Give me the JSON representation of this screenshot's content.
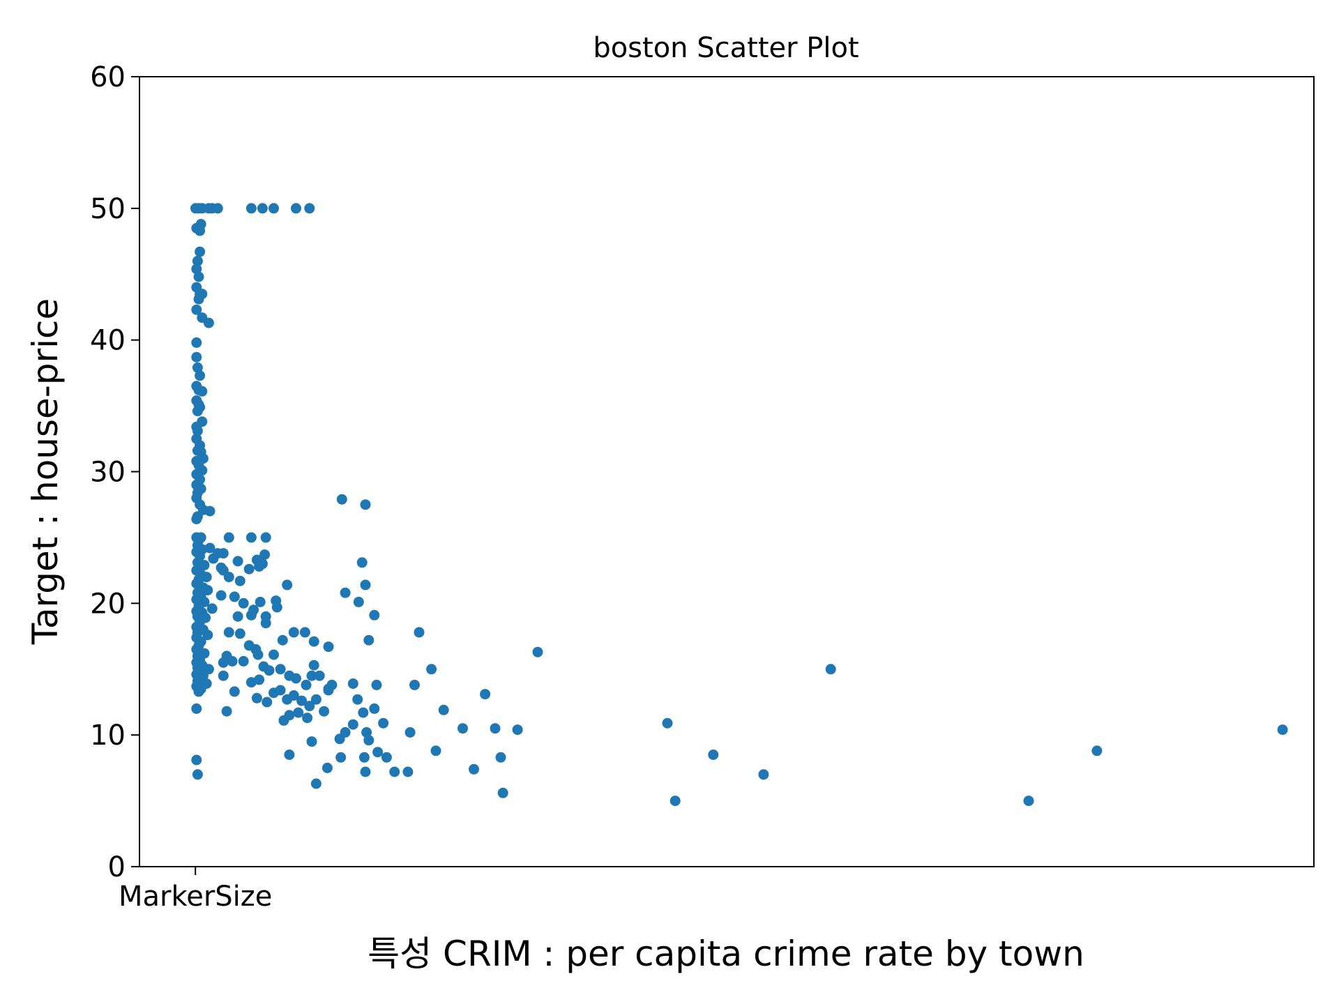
{
  "chart_data": {
    "type": "scatter",
    "title": "boston Scatter Plot",
    "xlabel": "특성 CRIM : per capita crime rate by town",
    "ylabel": "Target : house-price",
    "x_tick_labels": [
      {
        "x": 0,
        "label": "MarkerSize"
      }
    ],
    "y_ticks": [
      0,
      10,
      20,
      30,
      40,
      50,
      60
    ],
    "ylim": [
      0,
      60
    ],
    "xlim": [
      -5,
      100
    ],
    "grid": false,
    "legend": false,
    "marker_color": "#1f77b4",
    "series": [
      {
        "points": [
          [
            0.02,
            50.0
          ],
          [
            0.3,
            50.0
          ],
          [
            0.6,
            50.0
          ],
          [
            1.2,
            50.0
          ],
          [
            1.5,
            50.0
          ],
          [
            2.0,
            50.0
          ],
          [
            5.0,
            50.0
          ],
          [
            6.0,
            50.0
          ],
          [
            7.0,
            50.0
          ],
          [
            9.0,
            50.0
          ],
          [
            10.2,
            50.0
          ],
          [
            0.1,
            48.5
          ],
          [
            0.4,
            48.3
          ],
          [
            0.5,
            48.8
          ],
          [
            0.2,
            46.0
          ],
          [
            0.4,
            46.7
          ],
          [
            0.1,
            45.4
          ],
          [
            0.3,
            44.8
          ],
          [
            0.1,
            44.0
          ],
          [
            0.4,
            43.5
          ],
          [
            0.3,
            43.1
          ],
          [
            0.6,
            43.5
          ],
          [
            0.1,
            42.3
          ],
          [
            0.6,
            41.7
          ],
          [
            1.2,
            41.3
          ],
          [
            0.1,
            39.8
          ],
          [
            0.1,
            38.7
          ],
          [
            0.2,
            37.9
          ],
          [
            0.4,
            37.3
          ],
          [
            0.1,
            36.5
          ],
          [
            0.3,
            36.2
          ],
          [
            0.6,
            36.1
          ],
          [
            0.1,
            35.4
          ],
          [
            0.3,
            35.1
          ],
          [
            0.2,
            34.6
          ],
          [
            0.4,
            34.9
          ],
          [
            0.6,
            33.8
          ],
          [
            0.1,
            33.4
          ],
          [
            0.2,
            33.1
          ],
          [
            0.1,
            32.5
          ],
          [
            0.4,
            32.0
          ],
          [
            0.2,
            31.6
          ],
          [
            0.5,
            31.5
          ],
          [
            0.7,
            31.0
          ],
          [
            0.1,
            30.8
          ],
          [
            0.3,
            30.5
          ],
          [
            0.6,
            30.1
          ],
          [
            0.1,
            29.8
          ],
          [
            0.4,
            29.4
          ],
          [
            0.1,
            29.0
          ],
          [
            0.5,
            28.7
          ],
          [
            0.2,
            28.4
          ],
          [
            0.1,
            28.0
          ],
          [
            0.4,
            27.5
          ],
          [
            0.7,
            27.1
          ],
          [
            1.3,
            27.0
          ],
          [
            0.2,
            26.6
          ],
          [
            0.1,
            26.4
          ],
          [
            0.5,
            25.0
          ],
          [
            0.1,
            25.0
          ],
          [
            0.3,
            24.8
          ],
          [
            0.2,
            24.4
          ],
          [
            0.6,
            24.1
          ],
          [
            1.3,
            24.2
          ],
          [
            0.1,
            23.9
          ],
          [
            2.5,
            23.8
          ],
          [
            0.4,
            23.6
          ],
          [
            1.6,
            23.4
          ],
          [
            0.2,
            23.1
          ],
          [
            0.8,
            22.9
          ],
          [
            2.3,
            22.7
          ],
          [
            0.1,
            22.5
          ],
          [
            0.5,
            22.2
          ],
          [
            1.0,
            22.0
          ],
          [
            0.3,
            21.8
          ],
          [
            0.1,
            21.5
          ],
          [
            0.7,
            21.2
          ],
          [
            1.1,
            21.0
          ],
          [
            0.2,
            20.8
          ],
          [
            0.5,
            20.5
          ],
          [
            0.1,
            20.3
          ],
          [
            0.8,
            20.1
          ],
          [
            0.3,
            19.8
          ],
          [
            1.5,
            19.6
          ],
          [
            0.1,
            19.4
          ],
          [
            0.6,
            19.3
          ],
          [
            0.2,
            19.0
          ],
          [
            0.9,
            18.9
          ],
          [
            0.4,
            18.6
          ],
          [
            0.1,
            18.2
          ],
          [
            0.7,
            18.0
          ],
          [
            0.2,
            17.8
          ],
          [
            1.1,
            17.6
          ],
          [
            0.1,
            17.4
          ],
          [
            0.5,
            17.1
          ],
          [
            0.3,
            16.8
          ],
          [
            0.1,
            16.5
          ],
          [
            0.8,
            16.2
          ],
          [
            0.2,
            16.0
          ],
          [
            0.4,
            15.7
          ],
          [
            0.1,
            15.5
          ],
          [
            0.6,
            15.3
          ],
          [
            0.2,
            15.1
          ],
          [
            1.2,
            15.0
          ],
          [
            0.3,
            14.8
          ],
          [
            0.1,
            14.6
          ],
          [
            0.7,
            14.5
          ],
          [
            0.4,
            14.3
          ],
          [
            0.2,
            14.1
          ],
          [
            1.0,
            13.9
          ],
          [
            0.1,
            13.7
          ],
          [
            0.5,
            13.5
          ],
          [
            0.3,
            13.3
          ],
          [
            0.1,
            12.0
          ],
          [
            0.1,
            8.1
          ],
          [
            0.2,
            7.0
          ],
          [
            3.0,
            25.0
          ],
          [
            5.0,
            25.0
          ],
          [
            6.3,
            25.0
          ],
          [
            2.0,
            23.8
          ],
          [
            3.8,
            23.2
          ],
          [
            5.5,
            23.3
          ],
          [
            6.2,
            23.7
          ],
          [
            6.0,
            23.0
          ],
          [
            2.5,
            22.5
          ],
          [
            3.0,
            22.0
          ],
          [
            4.0,
            21.7
          ],
          [
            4.8,
            22.6
          ],
          [
            5.7,
            22.8
          ],
          [
            8.2,
            21.4
          ],
          [
            3.5,
            20.5
          ],
          [
            2.3,
            20.6
          ],
          [
            4.3,
            20.0
          ],
          [
            5.2,
            19.5
          ],
          [
            5.8,
            20.1
          ],
          [
            7.2,
            20.2
          ],
          [
            7.3,
            19.7
          ],
          [
            3.8,
            19.0
          ],
          [
            5.0,
            19.1
          ],
          [
            6.3,
            19.0
          ],
          [
            6.3,
            18.5
          ],
          [
            3.0,
            17.8
          ],
          [
            4.0,
            17.7
          ],
          [
            7.8,
            17.2
          ],
          [
            8.8,
            17.8
          ],
          [
            9.8,
            17.8
          ],
          [
            10.6,
            17.1
          ],
          [
            11.9,
            16.7
          ],
          [
            2.8,
            16.0
          ],
          [
            3.3,
            15.6
          ],
          [
            4.3,
            15.6
          ],
          [
            4.8,
            16.8
          ],
          [
            5.4,
            16.5
          ],
          [
            5.6,
            16.1
          ],
          [
            6.1,
            15.2
          ],
          [
            7.0,
            16.1
          ],
          [
            2.5,
            15.5
          ],
          [
            2.5,
            14.5
          ],
          [
            3.5,
            13.3
          ],
          [
            2.8,
            11.8
          ],
          [
            5.0,
            14.0
          ],
          [
            5.7,
            14.2
          ],
          [
            6.6,
            14.9
          ],
          [
            7.6,
            15.0
          ],
          [
            8.4,
            14.5
          ],
          [
            9.0,
            14.3
          ],
          [
            9.9,
            13.8
          ],
          [
            10.4,
            14.5
          ],
          [
            11.1,
            14.5
          ],
          [
            10.6,
            15.3
          ],
          [
            11.9,
            13.5
          ],
          [
            5.5,
            12.8
          ],
          [
            6.4,
            12.5
          ],
          [
            7.0,
            13.2
          ],
          [
            7.6,
            13.4
          ],
          [
            8.2,
            12.7
          ],
          [
            8.8,
            13.0
          ],
          [
            9.5,
            12.6
          ],
          [
            10.2,
            12.2
          ],
          [
            10.8,
            12.7
          ],
          [
            11.5,
            11.8
          ],
          [
            8.4,
            11.5
          ],
          [
            9.2,
            11.7
          ],
          [
            10.0,
            11.3
          ],
          [
            7.9,
            11.1
          ],
          [
            12.2,
            13.8
          ],
          [
            11.9,
            13.4
          ],
          [
            14.1,
            13.9
          ],
          [
            16.2,
            13.8
          ],
          [
            8.4,
            8.5
          ],
          [
            10.4,
            9.5
          ],
          [
            10.8,
            6.3
          ],
          [
            11.8,
            7.5
          ],
          [
            12.9,
            9.7
          ],
          [
            13.0,
            8.3
          ],
          [
            13.4,
            10.2
          ],
          [
            14.1,
            10.8
          ],
          [
            14.5,
            12.7
          ],
          [
            15.0,
            11.7
          ],
          [
            15.3,
            10.2
          ],
          [
            15.5,
            9.6
          ],
          [
            16.0,
            12.0
          ],
          [
            16.3,
            8.7
          ],
          [
            16.8,
            10.9
          ],
          [
            17.1,
            8.3
          ],
          [
            17.8,
            7.2
          ],
          [
            19.0,
            7.2
          ],
          [
            15.1,
            8.3
          ],
          [
            15.2,
            7.2
          ],
          [
            19.2,
            10.2
          ],
          [
            19.6,
            13.8
          ],
          [
            20.0,
            17.8
          ],
          [
            21.1,
            15.0
          ],
          [
            22.2,
            11.9
          ],
          [
            23.9,
            10.5
          ],
          [
            24.9,
            7.4
          ],
          [
            25.9,
            13.1
          ],
          [
            21.5,
            8.8
          ],
          [
            26.8,
            10.5
          ],
          [
            27.3,
            8.3
          ],
          [
            27.5,
            5.6
          ],
          [
            28.8,
            10.4
          ],
          [
            13.1,
            27.9
          ],
          [
            15.2,
            27.5
          ],
          [
            13.4,
            20.8
          ],
          [
            14.6,
            20.1
          ],
          [
            15.2,
            21.4
          ],
          [
            14.9,
            23.1
          ],
          [
            16.0,
            19.1
          ],
          [
            15.5,
            17.2
          ],
          [
            30.6,
            16.3
          ],
          [
            42.2,
            10.9
          ],
          [
            42.9,
            5.0
          ],
          [
            46.3,
            8.5
          ],
          [
            50.8,
            7.0
          ],
          [
            56.8,
            15.0
          ],
          [
            74.5,
            5.0
          ],
          [
            80.6,
            8.8
          ],
          [
            97.2,
            10.4
          ]
        ]
      }
    ]
  }
}
